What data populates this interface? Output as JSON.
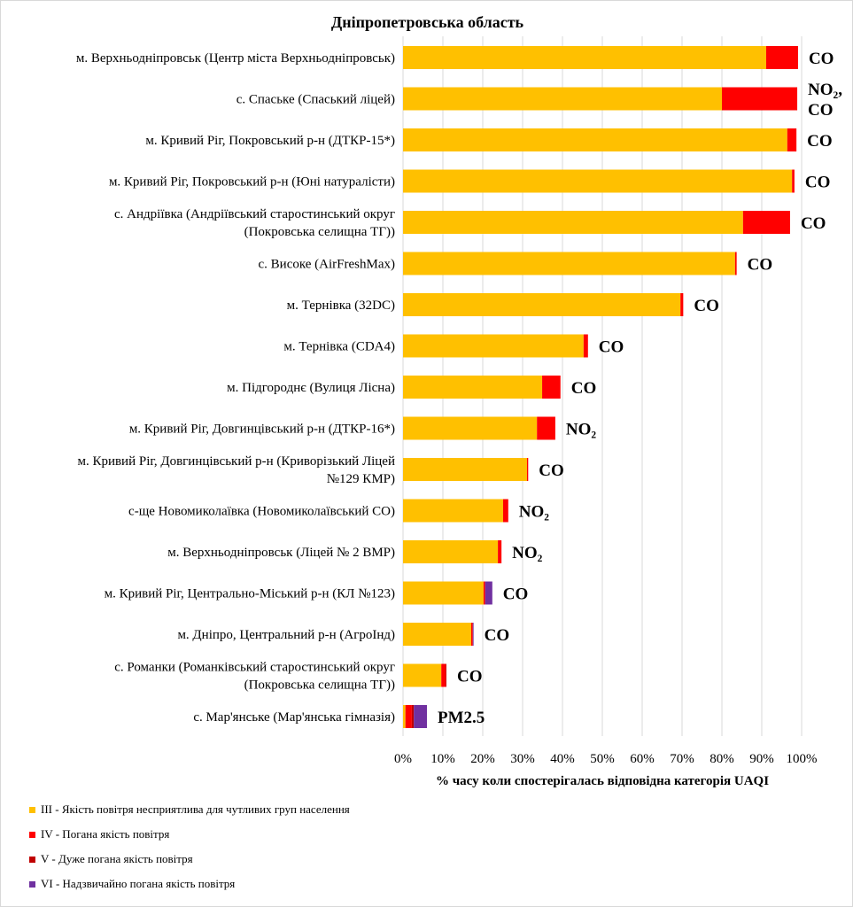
{
  "chart_data": {
    "type": "bar",
    "stacked": true,
    "orientation": "horizontal",
    "title": "Дніпропетровська  область",
    "xlabel": "% часу коли спостерігалась відповідна категорія UAQI",
    "xlim": [
      0,
      100
    ],
    "xticks": [
      "0%",
      "10%",
      "20%",
      "30%",
      "40%",
      "50%",
      "60%",
      "70%",
      "80%",
      "90%",
      "100%"
    ],
    "grid": true,
    "legend_position": "bottom-left",
    "categories": [
      "м. Верхньодніпровськ (Центр міста Верхньодніпровськ)",
      "с. Спаське (Спаський ліцей)",
      "м. Кривий Ріг, Покровський р-н (ДТКР-15*)",
      "м. Кривий Ріг, Покровський р-н (Юні натуралісти)",
      "с. Андріївка (Андріївський старостинський округ\n(Покровська селищна ТГ))",
      "с. Високе (AirFreshMax)",
      "м. Тернівка (32DC)",
      "м. Тернівка (CDA4)",
      "м. Підгороднє (Вулиця Лісна)",
      "м. Кривий Ріг, Довгинцівський р-н (ДТКР-16*)",
      "м. Кривий Ріг, Довгинцівський р-н (Криворізький Ліцей\n№129 КМР)",
      "с-ще Новомиколаївка (Новомиколаївський СО)",
      "м. Верхньодніпровськ (Ліцей № 2 ВМР)",
      "м. Кривий Ріг, Центрально-Міський р-н (КЛ №123)",
      "м. Дніпро, Центральний р-н (АгроІнд)",
      "с. Романки (Романківський старостинський округ\n(Покровська селищна ТГ))",
      "с. Мар'янське (Мар'янська гімназія)"
    ],
    "pollutants": [
      "CO",
      "NO₂,\nCO",
      "CO",
      "CO",
      "CO",
      "CO",
      "CO",
      "CO",
      "CO",
      "NO₂",
      "CO",
      "NO₂",
      "NO₂",
      "CO",
      "CO",
      "CO",
      "PM2.5"
    ],
    "series": [
      {
        "name": "III - Якість повітря  несприятлива  для чутливих  груп  населення",
        "color": "#FFC000",
        "values": [
          91.1,
          80.0,
          96.4,
          97.6,
          85.3,
          83.3,
          69.6,
          45.3,
          34.9,
          33.6,
          31.1,
          25.1,
          23.8,
          20.2,
          17.1,
          9.6,
          0.6
        ]
      },
      {
        "name": "IV - Погана якість повітря",
        "color": "#FF0000",
        "values": [
          8.0,
          18.9,
          2.3,
          0.6,
          11.8,
          0.4,
          0.7,
          1.1,
          4.6,
          4.6,
          0.3,
          1.3,
          0.9,
          0.4,
          0.4,
          1.1,
          1.6
        ]
      },
      {
        "name": "V - Дуже погана  якість повітря",
        "color": "#C00000",
        "values": [
          0,
          0,
          0,
          0,
          0,
          0,
          0,
          0,
          0,
          0,
          0,
          0,
          0,
          0,
          0,
          0.2,
          0.5
        ]
      },
      {
        "name": "VI - Надзвичайно  погана якість повітря",
        "color": "#7030A0",
        "values": [
          0,
          0,
          0,
          0,
          0,
          0,
          0,
          0,
          0,
          0,
          0,
          0,
          0,
          1.8,
          0.2,
          0,
          3.3
        ]
      }
    ]
  }
}
